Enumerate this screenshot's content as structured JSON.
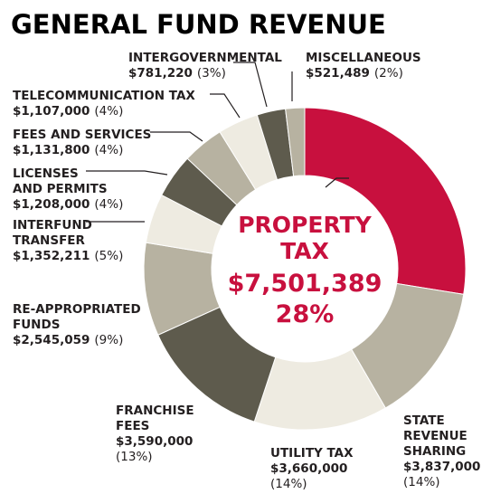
{
  "chart_data": {
    "type": "pie",
    "title": "GENERAL FUND REVENUE",
    "slices": [
      {
        "name": "PROPERTY TAX",
        "value": 7501389,
        "value_label": "$7,501,389",
        "pct_label": "28%",
        "color": "#c8103e"
      },
      {
        "name": "STATE REVENUE SHARING",
        "value": 3837000,
        "value_label": "$3,837,000",
        "pct_label": "(14%)",
        "color": "#b7b2a1"
      },
      {
        "name": "UTILITY TAX",
        "value": 3660000,
        "value_label": "$3,660,000",
        "pct_label": "(14%)",
        "color": "#eeebe1"
      },
      {
        "name": "FRANCHISE FEES",
        "value": 3590000,
        "value_label": "$3,590,000",
        "pct_label": "(13%)",
        "color": "#5e5b4d"
      },
      {
        "name": "RE-APPROPRIATED FUNDS",
        "value": 2545059,
        "value_label": "$2,545,059",
        "pct_label": "(9%)",
        "color": "#b7b2a1"
      },
      {
        "name": "INTERFUND TRANSFER",
        "value": 1352211,
        "value_label": "$1,352,211",
        "pct_label": "(5%)",
        "color": "#eeebe1"
      },
      {
        "name": "LICENSES AND PERMITS",
        "value": 1208000,
        "value_label": "$1,208,000",
        "pct_label": "(4%)",
        "color": "#5e5b4d"
      },
      {
        "name": "FEES AND SERVICES",
        "value": 1131800,
        "value_label": "$1,131,800",
        "pct_label": "(4%)",
        "color": "#b7b2a1"
      },
      {
        "name": "TELECOMMUNICATION TAX",
        "value": 1107000,
        "value_label": "$1,107,000",
        "pct_label": "(4%)",
        "color": "#eeebe1"
      },
      {
        "name": "INTERGOVERNMENTAL",
        "value": 781220,
        "value_label": "$781,220",
        "pct_label": "(3%)",
        "color": "#5e5b4d"
      },
      {
        "name": "MISCELLANEOUS",
        "value": 521489,
        "value_label": "$521,489",
        "pct_label": "(2%)",
        "color": "#b7b2a1"
      }
    ],
    "center_label": {
      "line1": "PROPERTY",
      "line2": "TAX",
      "line3": "$7,501,389",
      "line4": "28%"
    }
  },
  "labels": [
    {
      "lines": [
        "MISCELLANEOUS"
      ],
      "value": "$521,489",
      "pct": "(2%)"
    },
    {
      "lines": [
        "INTERGOVERNMENTAL"
      ],
      "value": "$781,220",
      "pct": "(3%)"
    },
    {
      "lines": [
        "TELECOMMUNICATION TAX"
      ],
      "value": "$1,107,000",
      "pct": "(4%)"
    },
    {
      "lines": [
        "FEES AND SERVICES"
      ],
      "value": "$1,131,800",
      "pct": "(4%)"
    },
    {
      "lines": [
        "LICENSES",
        "AND PERMITS"
      ],
      "value": "$1,208,000",
      "pct": "(4%)"
    },
    {
      "lines": [
        "INTERFUND",
        "TRANSFER"
      ],
      "value": "$1,352,211",
      "pct": "(5%)"
    },
    {
      "lines": [
        "RE-APPROPRIATED",
        "FUNDS"
      ],
      "value": "$2,545,059",
      "pct": "(9%)"
    },
    {
      "lines": [
        "FRANCHISE",
        "FEES"
      ],
      "value": "$3,590,000",
      "pct": "(13%)"
    },
    {
      "lines": [
        "UTILITY TAX"
      ],
      "value": "$3,660,000",
      "pct": "(14%)"
    },
    {
      "lines": [
        "STATE",
        "REVENUE",
        "SHARING"
      ],
      "value": "$3,837,000",
      "pct": "(14%)"
    }
  ]
}
